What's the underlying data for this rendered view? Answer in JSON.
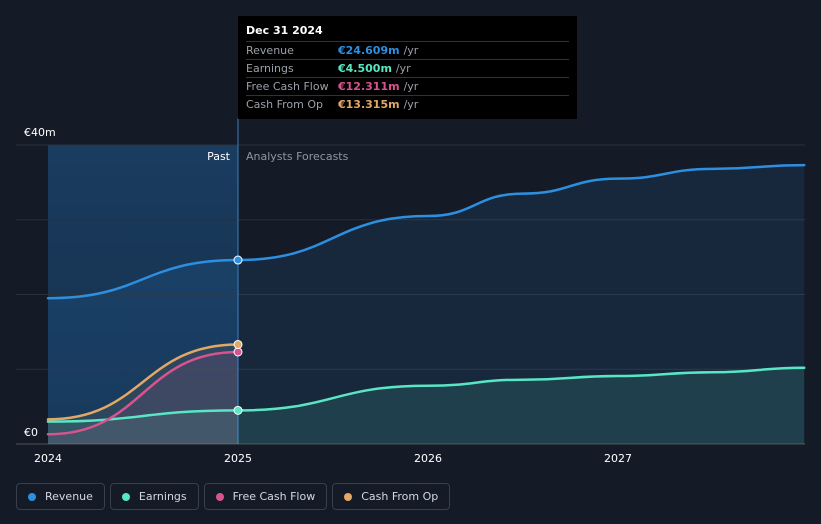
{
  "chart_data": {
    "type": "line",
    "y_axis": {
      "top_label": "€40m",
      "bottom_label": "€0",
      "ylim": [
        0,
        40
      ]
    },
    "x_ticks": [
      "2024",
      "2025",
      "2026",
      "2027"
    ],
    "past_label": "Past",
    "forecast_label": "Analysts Forecasts",
    "divider_x": 2025.0,
    "series": [
      {
        "name": "Revenue",
        "color": "#2d8fe0",
        "area": true,
        "points": [
          [
            2024.0,
            19.5
          ],
          [
            2025.0,
            24.609
          ],
          [
            2026.0,
            30.5
          ],
          [
            2026.5,
            33.5
          ],
          [
            2027.0,
            35.5
          ],
          [
            2027.5,
            36.8
          ],
          [
            2027.98,
            37.3
          ]
        ]
      },
      {
        "name": "Earnings",
        "color": "#59e6c4",
        "area": true,
        "points": [
          [
            2024.0,
            3.0
          ],
          [
            2025.0,
            4.5
          ],
          [
            2026.0,
            7.8
          ],
          [
            2026.5,
            8.6
          ],
          [
            2027.0,
            9.1
          ],
          [
            2027.5,
            9.6
          ],
          [
            2027.98,
            10.2
          ]
        ]
      },
      {
        "name": "Free Cash Flow",
        "color": "#d9548f",
        "area": false,
        "points": [
          [
            2024.0,
            1.3
          ],
          [
            2025.0,
            12.311
          ]
        ]
      },
      {
        "name": "Cash From Op",
        "color": "#e3a865",
        "area": false,
        "points": [
          [
            2024.0,
            3.3
          ],
          [
            2025.0,
            13.315
          ]
        ]
      }
    ],
    "highlight_x": 2025.0
  },
  "tooltip": {
    "date": "Dec 31 2024",
    "rows": [
      {
        "label": "Revenue",
        "value": "€24.609m",
        "unit": "/yr",
        "color": "#2d8fe0"
      },
      {
        "label": "Earnings",
        "value": "€4.500m",
        "unit": "/yr",
        "color": "#59e6c4"
      },
      {
        "label": "Free Cash Flow",
        "value": "€12.311m",
        "unit": "/yr",
        "color": "#d9548f"
      },
      {
        "label": "Cash From Op",
        "value": "€13.315m",
        "unit": "/yr",
        "color": "#e3a865"
      }
    ]
  },
  "legend": [
    {
      "label": "Revenue",
      "color": "#2d8fe0"
    },
    {
      "label": "Earnings",
      "color": "#59e6c4"
    },
    {
      "label": "Free Cash Flow",
      "color": "#d9548f"
    },
    {
      "label": "Cash From Op",
      "color": "#e3a865"
    }
  ]
}
